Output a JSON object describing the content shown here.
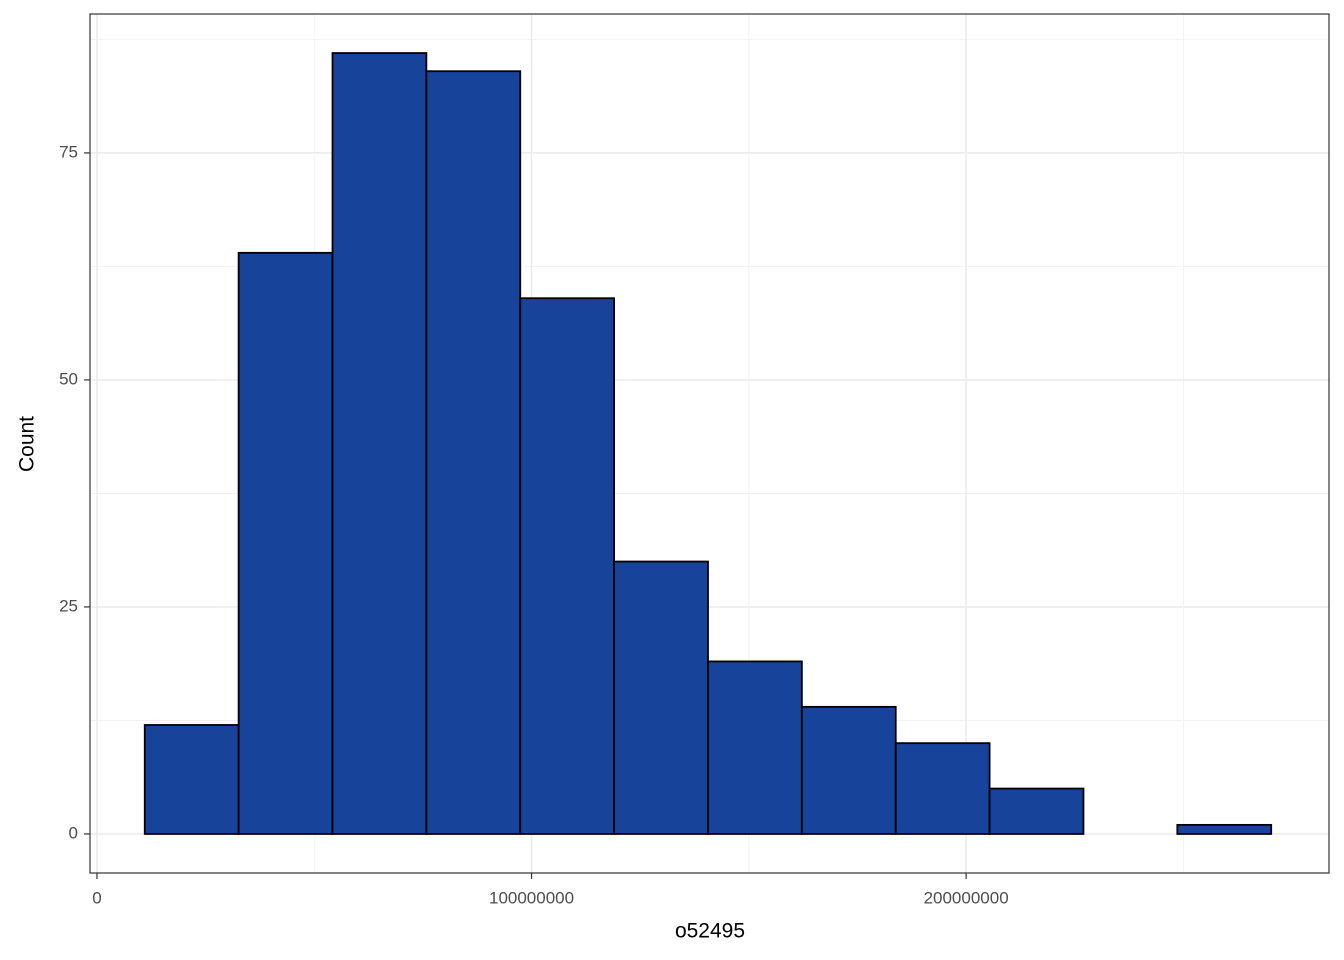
{
  "chart_data": {
    "type": "histogram",
    "x_label": "o52495",
    "y_label": "Count",
    "bins": [
      11000000,
      32600000,
      54200000,
      75800000,
      97400000,
      119000000,
      140600000,
      162200000,
      183800000,
      205400000,
      227000000,
      248600000,
      270200000
    ],
    "values": [
      12,
      64,
      86,
      84,
      59,
      30,
      19,
      14,
      10,
      5,
      0,
      1
    ],
    "color": "#17449a",
    "edge_color": "#000000",
    "xlim": [
      -1600000,
      283500000
    ],
    "xticks": [
      0,
      100000000,
      200000000
    ],
    "ylim": [
      -4.3,
      90.3
    ],
    "yticks": [
      0,
      25,
      50,
      75
    ],
    "grid": true
  }
}
